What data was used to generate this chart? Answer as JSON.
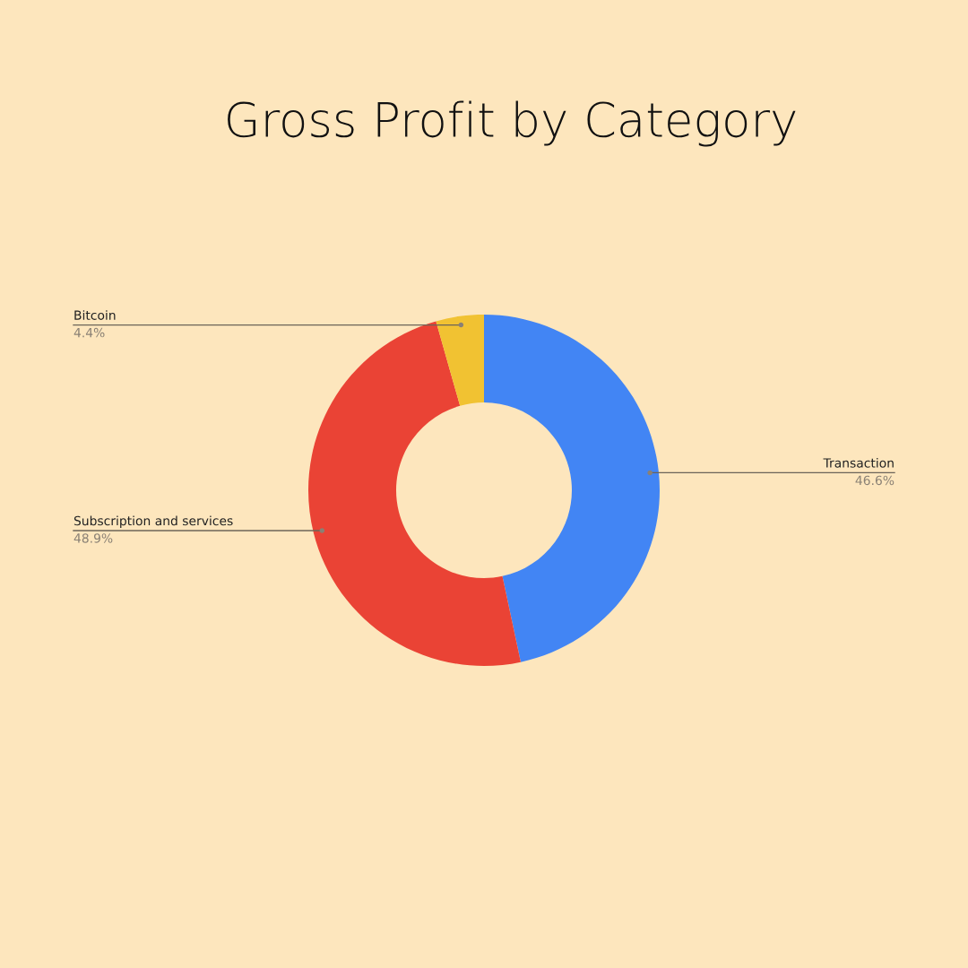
{
  "chart_data": {
    "type": "donut",
    "title": "Gross Profit by Category",
    "categories": [
      "Transaction",
      "Subscription and services",
      "Bitcoin"
    ],
    "values": [
      46.6,
      48.9,
      4.4
    ],
    "value_labels": [
      "46.6%",
      "48.9%",
      "4.4%"
    ],
    "colors": [
      "#4285f4",
      "#ea4335",
      "#f1c232"
    ],
    "legend": false
  }
}
